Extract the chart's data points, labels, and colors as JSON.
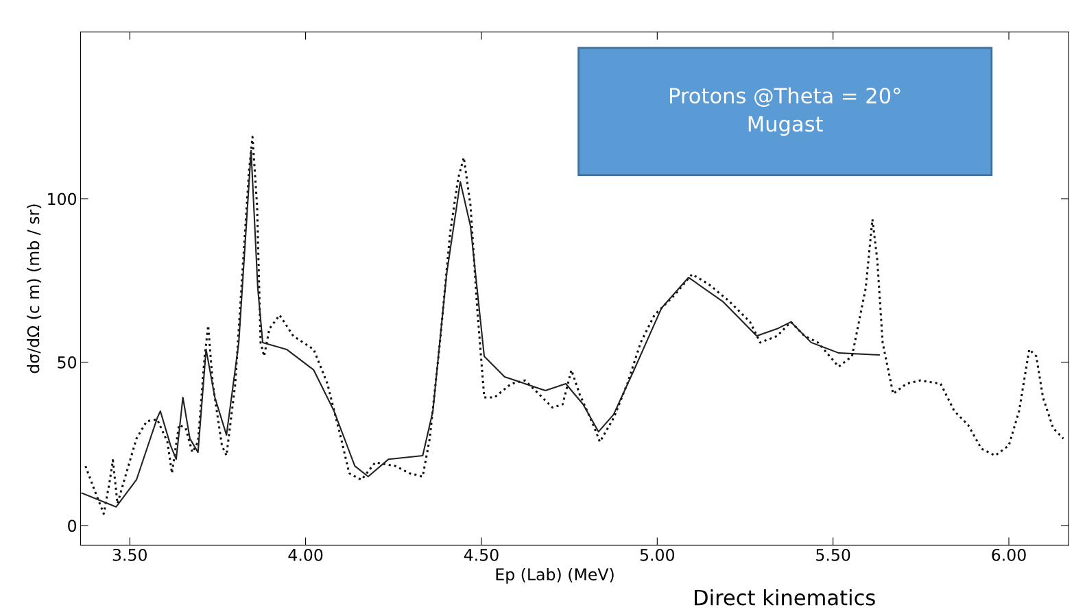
{
  "chart_data": {
    "type": "line",
    "xlabel": "Ep (Lab) (MeV)",
    "ylabel": "dσ/dΩ (c m) (mb / sr)",
    "xlim": [
      3.36,
      6.17
    ],
    "ylim": [
      -6,
      151
    ],
    "xticks": [
      {
        "value": 3.5,
        "label": "3.50"
      },
      {
        "value": 4.0,
        "label": "4.00"
      },
      {
        "value": 4.5,
        "label": "4.50"
      },
      {
        "value": 5.0,
        "label": "5.00"
      },
      {
        "value": 5.5,
        "label": "5.50"
      },
      {
        "value": 6.0,
        "label": "6.00"
      }
    ],
    "yticks": [
      0,
      50,
      100
    ],
    "grid": false,
    "legend": false,
    "annotations": [
      "Protons @Theta = 20°\nMugast",
      "Direct kinematics"
    ],
    "series": [
      {
        "color": "#111111",
        "line_style": "dotted",
        "x": [
          3.374,
          3.403,
          3.426,
          3.442,
          3.452,
          3.465,
          3.49,
          3.519,
          3.548,
          3.578,
          3.607,
          3.62,
          3.64,
          3.659,
          3.678,
          3.694,
          3.713,
          3.723,
          3.736,
          3.762,
          3.775,
          3.8,
          3.82,
          3.839,
          3.849,
          3.862,
          3.872,
          3.882,
          3.897,
          3.926,
          3.965,
          4.023,
          4.062,
          4.101,
          4.124,
          4.159,
          4.198,
          4.256,
          4.295,
          4.333,
          4.353,
          4.382,
          4.411,
          4.434,
          4.45,
          4.469,
          4.488,
          4.508,
          4.537,
          4.585,
          4.624,
          4.663,
          4.702,
          4.731,
          4.756,
          4.779,
          4.818,
          4.837,
          4.876,
          4.915,
          4.953,
          4.992,
          5.05,
          5.099,
          5.147,
          5.205,
          5.264,
          5.293,
          5.341,
          5.38,
          5.419,
          5.457,
          5.516,
          5.554,
          5.593,
          5.612,
          5.626,
          5.641,
          5.671,
          5.709,
          5.748,
          5.806,
          5.845,
          5.884,
          5.922,
          5.961,
          6.0,
          6.029,
          6.058,
          6.078,
          6.097,
          6.126,
          6.155
        ],
        "values": [
          18.2,
          9.9,
          3.6,
          13,
          20,
          6.7,
          16,
          26.6,
          31.9,
          32.5,
          25.6,
          16,
          30.8,
          29.8,
          22.4,
          25.6,
          51.8,
          61.2,
          43.4,
          24.5,
          21.4,
          43.4,
          76.9,
          108.4,
          118.9,
          97.9,
          56,
          51.8,
          60.2,
          64.4,
          58,
          53.9,
          43.4,
          26.6,
          16,
          14,
          19.3,
          18.2,
          16,
          15,
          26.6,
          56,
          89.5,
          106.3,
          112.6,
          97.9,
          66.5,
          39.2,
          39.2,
          43.4,
          44.4,
          40.3,
          36.1,
          37.1,
          47.6,
          40.3,
          30.8,
          25.6,
          32.9,
          43.4,
          56,
          64.4,
          70.6,
          76.9,
          73.8,
          68.6,
          62.3,
          56,
          58,
          62.3,
          58,
          56,
          48.6,
          51.8,
          72.7,
          93.7,
          81.1,
          56,
          40.3,
          43.4,
          44.4,
          43.4,
          35,
          30.8,
          23.5,
          21.4,
          24.5,
          35,
          53.9,
          51.8,
          39.2,
          29.8,
          26.6
        ]
      },
      {
        "color": "#222222",
        "line_style": "solid",
        "x": [
          3.364,
          3.461,
          3.519,
          3.578,
          3.587,
          3.616,
          3.632,
          3.651,
          3.671,
          3.694,
          3.717,
          3.742,
          3.775,
          3.81,
          3.845,
          3.864,
          3.878,
          3.946,
          4.023,
          4.081,
          4.14,
          4.178,
          4.236,
          4.333,
          4.362,
          4.401,
          4.44,
          4.469,
          4.508,
          4.566,
          4.682,
          4.74,
          4.789,
          4.833,
          4.876,
          4.934,
          5.012,
          5.089,
          5.186,
          5.283,
          5.341,
          5.38,
          5.438,
          5.516,
          5.631
        ],
        "values": [
          9.9,
          5.7,
          14,
          32.9,
          35,
          24.5,
          20.3,
          39.2,
          26.6,
          22.4,
          53.9,
          39.2,
          27.7,
          56,
          114.7,
          72.7,
          56,
          53.9,
          47.6,
          35,
          18.2,
          15,
          20.3,
          21.4,
          35,
          76.9,
          105.2,
          91.6,
          51.8,
          45.5,
          41.3,
          43.4,
          37.1,
          28.7,
          34,
          47.6,
          66.5,
          75.9,
          68.6,
          58,
          60.2,
          62.3,
          56,
          52.8,
          52.2
        ]
      }
    ]
  }
}
